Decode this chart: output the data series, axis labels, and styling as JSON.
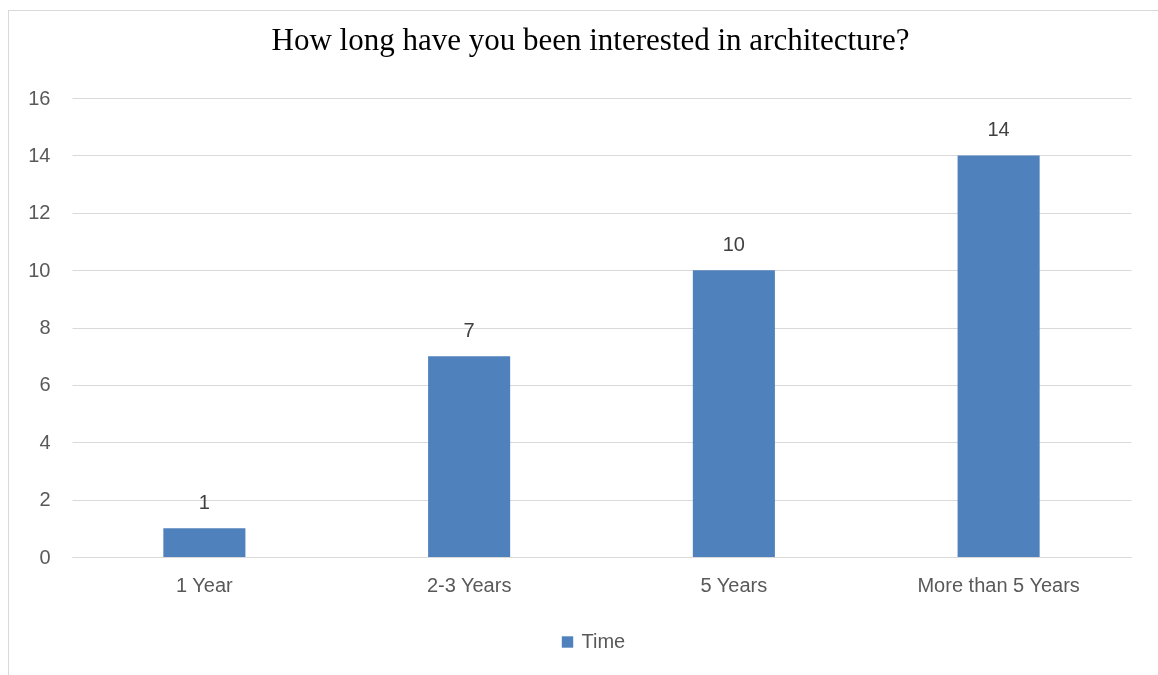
{
  "chart_data": {
    "type": "bar",
    "title": "How long have you been interested in architecture?",
    "categories": [
      "1 Year",
      "2-3 Years",
      "5 Years",
      "More than 5 Years"
    ],
    "series": [
      {
        "name": "Time",
        "color": "#4f81bd",
        "values": [
          1,
          7,
          10,
          14
        ]
      }
    ],
    "ylim": [
      0,
      16
    ],
    "yticks": [
      0,
      2,
      4,
      6,
      8,
      10,
      12,
      14,
      16
    ],
    "grid": "y",
    "legend": "bottom",
    "data_labels": true
  }
}
